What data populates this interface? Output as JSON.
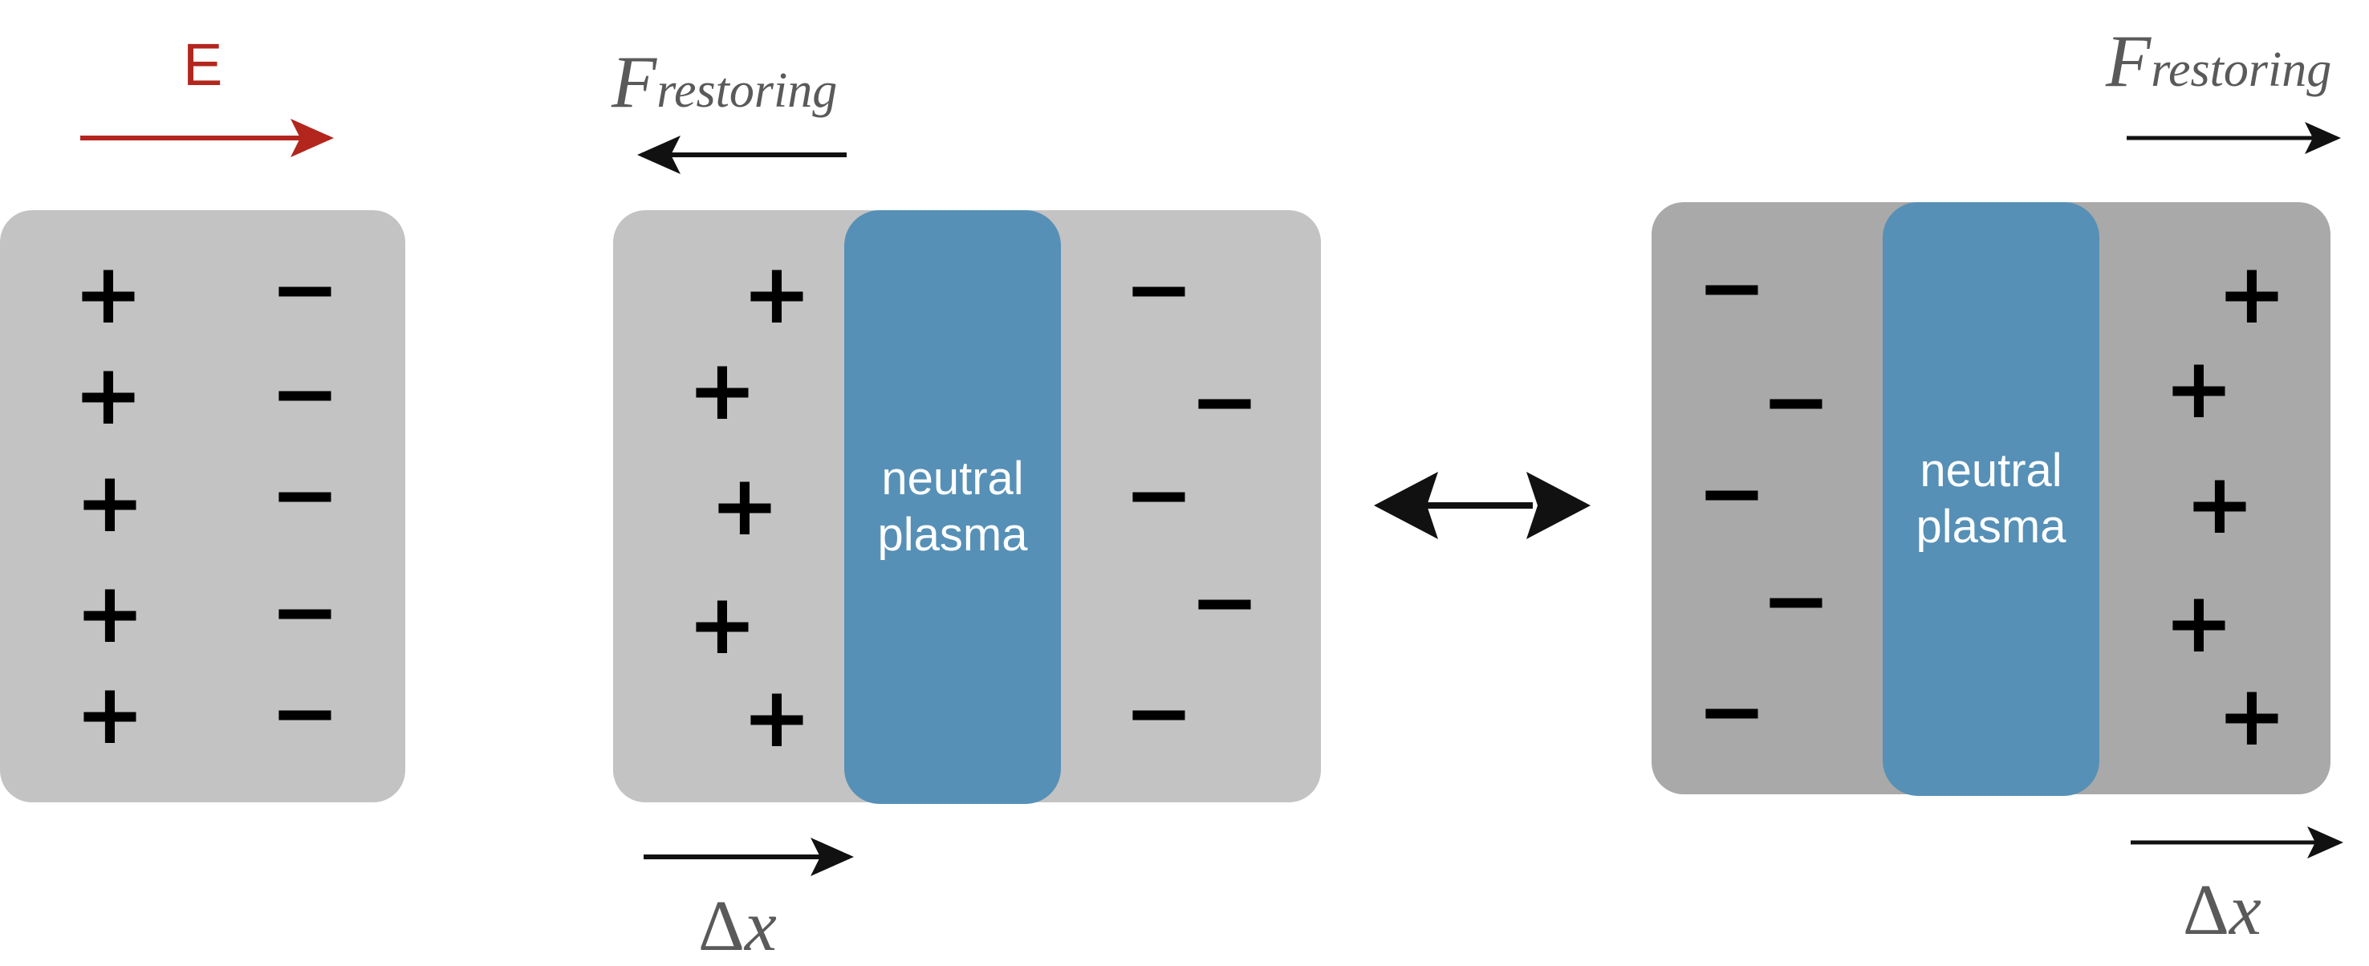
{
  "labels": {
    "e_field": "E",
    "force_main": "F",
    "force_sub": "restoring",
    "delta_symbol": "Δ",
    "delta_var": "x",
    "plasma_line1": "neutral",
    "plasma_line2": "plasma",
    "plus": "+",
    "minus": "−"
  },
  "colors": {
    "e_field": "#b3261e",
    "plasma": "#5690b6",
    "slab_light": "#c3c3c3",
    "slab_dark": "#a9a9a9",
    "label_gray": "#5a5a5a"
  },
  "icons": [
    "right-arrow-icon",
    "left-arrow-icon",
    "double-headed-arrow-icon"
  ]
}
